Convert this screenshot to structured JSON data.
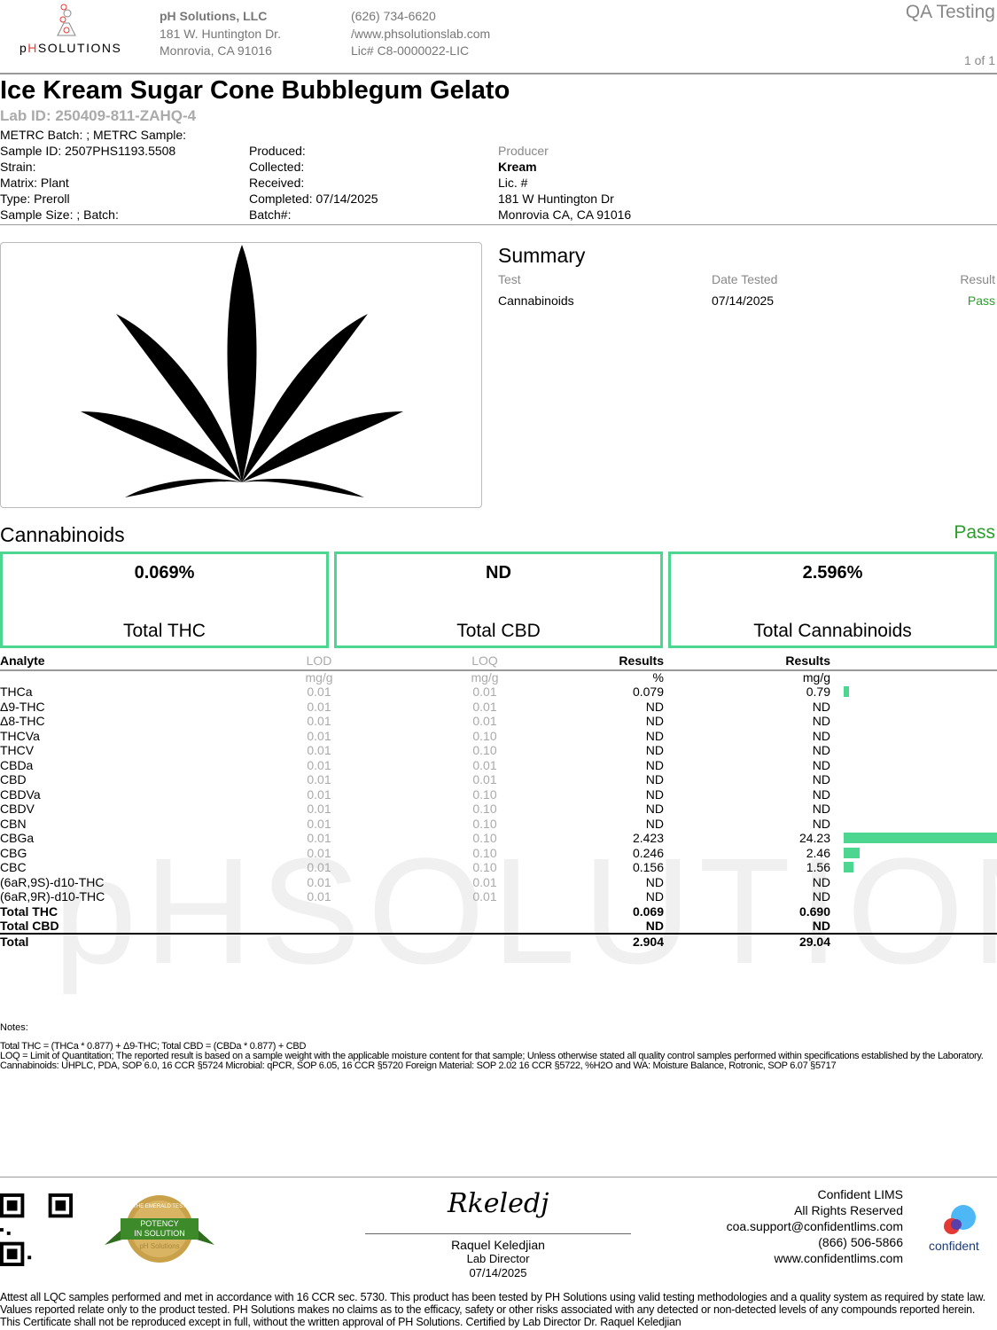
{
  "header": {
    "logo_text": "pHSOLUTIONS",
    "company": "pH Solutions, LLC",
    "address1": "181 W. Huntington Dr.",
    "address2": "Monrovia, CA 91016",
    "phone": "(626) 734-6620",
    "website": "/www.phsolutionslab.com",
    "license": "Lic# C8-0000022-LIC",
    "report_type": "QA Testing",
    "page": "1 of 1"
  },
  "product": {
    "title": "Ice Kream Sugar Cone Bubblegum Gelato",
    "lab_id": "Lab ID: 250409-811-ZAHQ-4"
  },
  "meta": {
    "col1": [
      "METRC Batch: ; METRC Sample:",
      "Sample ID: 2507PHS1193.5508",
      "Strain:",
      "Matrix: Plant",
      "Type: Preroll",
      "Sample Size: ; Batch:"
    ],
    "col2": [
      "Produced:",
      "Collected:",
      "Received:",
      "Completed: 07/14/2025",
      "Batch#:"
    ],
    "producer_label": "Producer",
    "producer_name": "Kream",
    "producer_lic": "Lic. #",
    "producer_addr1": "181 W Huntington Dr",
    "producer_addr2": "Monrovia CA, CA 91016"
  },
  "summary": {
    "title": "Summary",
    "headers": [
      "Test",
      "Date Tested",
      "Result"
    ],
    "rows": [
      {
        "test": "Cannabinoids",
        "date": "07/14/2025",
        "result": "Pass"
      }
    ]
  },
  "cannabinoids": {
    "title": "Cannabinoids",
    "result": "Pass",
    "boxes": [
      {
        "value": "0.069%",
        "label": "Total THC"
      },
      {
        "value": "ND",
        "label": "Total CBD"
      },
      {
        "value": "2.596%",
        "label": "Total Cannabinoids"
      }
    ],
    "headers": [
      "Analyte",
      "LOD",
      "LOQ",
      "Results",
      "Results"
    ],
    "units": [
      "",
      "mg/g",
      "mg/g",
      "%",
      "mg/g"
    ],
    "rows": [
      [
        "THCa",
        "0.01",
        "0.01",
        "0.079",
        "0.79",
        0.79
      ],
      [
        "Δ9-THC",
        "0.01",
        "0.01",
        "ND",
        "ND",
        0
      ],
      [
        "Δ8-THC",
        "0.01",
        "0.01",
        "ND",
        "ND",
        0
      ],
      [
        "THCVa",
        "0.01",
        "0.10",
        "ND",
        "ND",
        0
      ],
      [
        "THCV",
        "0.01",
        "0.10",
        "ND",
        "ND",
        0
      ],
      [
        "CBDa",
        "0.01",
        "0.01",
        "ND",
        "ND",
        0
      ],
      [
        "CBD",
        "0.01",
        "0.01",
        "ND",
        "ND",
        0
      ],
      [
        "CBDVa",
        "0.01",
        "0.10",
        "ND",
        "ND",
        0
      ],
      [
        "CBDV",
        "0.01",
        "0.10",
        "ND",
        "ND",
        0
      ],
      [
        "CBN",
        "0.01",
        "0.10",
        "ND",
        "ND",
        0
      ],
      [
        "CBGa",
        "0.01",
        "0.10",
        "2.423",
        "24.23",
        24.23
      ],
      [
        "CBG",
        "0.01",
        "0.10",
        "0.246",
        "2.46",
        2.46
      ],
      [
        "CBC",
        "0.01",
        "0.10",
        "0.156",
        "1.56",
        1.56
      ],
      [
        "(6aR,9S)-d10-THC",
        "0.01",
        "0.01",
        "ND",
        "ND",
        0
      ],
      [
        "(6aR,9R)-d10-THC",
        "0.01",
        "0.01",
        "ND",
        "ND",
        0
      ]
    ],
    "totals": [
      [
        "Total THC",
        "0.069",
        "0.690"
      ],
      [
        "Total CBD",
        "ND",
        "ND"
      ],
      [
        "Total",
        "2.904",
        "29.04"
      ]
    ],
    "bar_color": "#4cd68f"
  },
  "notes": {
    "label": "Notes:",
    "line1": "Total THC = (THCa * 0.877) + Δ9-THC; Total CBD = (CBDa * 0.877) + CBD",
    "line2": "LOQ = Limit of Quantitation; The reported result is based on a sample weight with the applicable moisture content for that sample; Unless otherwise stated all quality control samples performed within specifications established by the Laboratory. Cannabinoids: UHPLC,  PDA, SOP 6.0, 16 CCR §5724 Microbial: qPCR, SOP 6.05, 16 CCR §5720  Foreign Material: SOP 2.02 16 CCR §5722, %H2O and WA: Moisture  Balance,  Rotronic, SOP 6.07 §5717"
  },
  "footer": {
    "badge_text": [
      "THE EMERALD TEST",
      "POTENCY",
      "IN SOLUTION",
      "pH Solutions"
    ],
    "signature": "Rkeledj",
    "signer": "Raquel Keledjian",
    "signer_title": "Lab Director",
    "sign_date": "07/14/2025",
    "lims": [
      "Confident LIMS",
      "All Rights Reserved",
      "coa.support@confidentlims.com",
      "(866) 506-5866",
      "www.confidentlims.com"
    ],
    "lims_logo": "confident",
    "disclaimer": "Attest all LQC samples performed and met in accordance with 16 CCR sec. 5730. This product has been tested by PH Solutions using valid testing methodologies and a quality system as required by state law. Values reported relate only to the product tested. PH Solutions makes no claims as to the efficacy, safety or other risks associated with any detected or non-detected levels of any compounds reported herein. This Certificate shall not be reproduced except in full, without the written approval of PH Solutions. Certified by Lab Director  Dr. Raquel Keledjian"
  },
  "colors": {
    "accent": "#4cd68f",
    "pass": "#2a9d2a",
    "logo_red": "#e53935"
  }
}
